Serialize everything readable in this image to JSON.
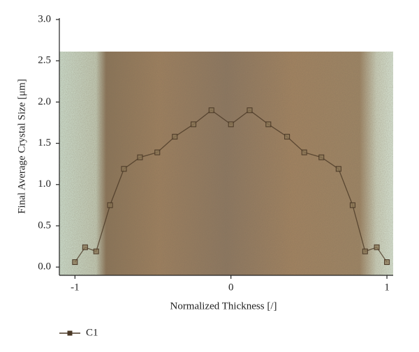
{
  "chart_data": {
    "type": "line",
    "x_label": "Normalized Thickness [/]",
    "y_label": "Final Average Crystal Size [μm]",
    "xlim": [
      -1.1,
      1.04
    ],
    "xticks": [
      -1,
      0,
      1
    ],
    "ylim": [
      -0.1,
      3.0
    ],
    "yticks": [
      {
        "value": 0,
        "label": "0.0"
      },
      {
        "value": 0.5,
        "label": "0.5"
      },
      {
        "value": 1,
        "label": "1.0"
      },
      {
        "value": 1.5,
        "label": "1.5"
      },
      {
        "value": 2,
        "label": "2.0"
      },
      {
        "value": 2.5,
        "label": "2.5"
      },
      {
        "value": 3,
        "label": "3.0"
      }
    ],
    "x": [
      -1.0,
      -0.935,
      -0.864,
      -0.775,
      -0.686,
      -0.583,
      -0.472,
      -0.36,
      -0.24,
      -0.125,
      0.0,
      0.12,
      0.24,
      0.36,
      0.47,
      0.58,
      0.69,
      0.78,
      0.86,
      0.935,
      1.0
    ],
    "series": [
      {
        "name": "C1",
        "color": "#4a3826",
        "values": [
          0.06,
          0.24,
          0.19,
          0.75,
          1.19,
          1.33,
          1.39,
          1.58,
          1.73,
          1.9,
          1.73,
          1.9,
          1.73,
          1.58,
          1.39,
          1.33,
          1.19,
          0.75,
          0.19,
          0.24,
          0.06
        ]
      }
    ]
  }
}
